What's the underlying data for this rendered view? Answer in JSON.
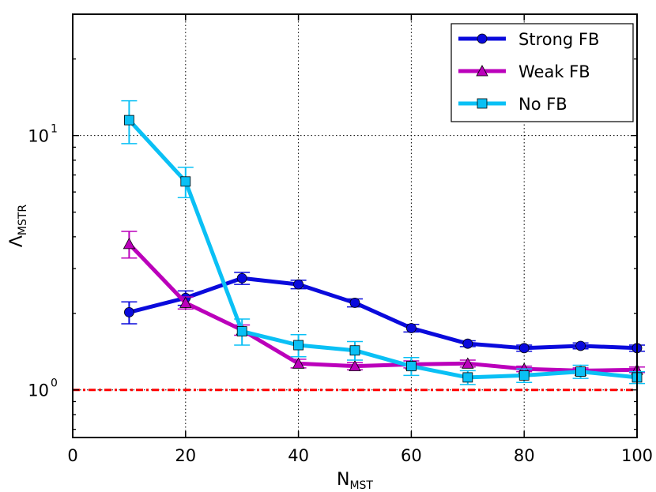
{
  "chart_data": {
    "type": "line",
    "xlabel": {
      "main": "N",
      "sub": "MST"
    },
    "ylabel": {
      "main": "Λ",
      "sub": "MSTR"
    },
    "xlim": [
      0,
      100
    ],
    "ylim": [
      0.65,
      30
    ],
    "yscale": "log",
    "x_ticks": [
      0,
      20,
      40,
      60,
      80,
      100
    ],
    "x_tick_labels": [
      "0",
      "20",
      "40",
      "60",
      "80",
      "100"
    ],
    "y_ticks": [
      1,
      10
    ],
    "y_tick_labels": [
      {
        "base": "10",
        "exp": "0"
      },
      {
        "base": "10",
        "exp": "1"
      }
    ],
    "grid": true,
    "reference_line": {
      "y": 1.0,
      "color": "#ff0000",
      "style": "dash-dot"
    },
    "legend_position": "top-right",
    "series": [
      {
        "name": "Strong FB",
        "color": "#0a0adc",
        "marker": "circle",
        "x": [
          10,
          20,
          30,
          40,
          50,
          60,
          70,
          80,
          90,
          100
        ],
        "y": [
          2.02,
          2.3,
          2.75,
          2.6,
          2.2,
          1.75,
          1.52,
          1.46,
          1.49,
          1.46
        ],
        "err": [
          0.2,
          0.15,
          0.15,
          0.1,
          0.08,
          0.06,
          0.04,
          0.04,
          0.04,
          0.04
        ]
      },
      {
        "name": "Weak FB",
        "color": "#bb00bb",
        "marker": "triangle",
        "x": [
          10,
          20,
          30,
          40,
          50,
          60,
          70,
          80,
          90,
          100
        ],
        "y": [
          3.75,
          2.2,
          1.72,
          1.27,
          1.24,
          1.26,
          1.27,
          1.21,
          1.19,
          1.2
        ],
        "err": [
          0.45,
          0.12,
          0.08,
          0.05,
          0.04,
          0.04,
          0.04,
          0.03,
          0.03,
          0.03
        ]
      },
      {
        "name": "No FB",
        "color": "#0ac0f5",
        "marker": "square",
        "x": [
          10,
          20,
          30,
          40,
          50,
          60,
          70,
          80,
          90,
          100
        ],
        "y": [
          11.5,
          6.6,
          1.7,
          1.5,
          1.43,
          1.24,
          1.12,
          1.14,
          1.18,
          1.12
        ],
        "err": [
          2.2,
          0.9,
          0.2,
          0.15,
          0.12,
          0.1,
          0.07,
          0.07,
          0.07,
          0.06
        ]
      }
    ]
  }
}
